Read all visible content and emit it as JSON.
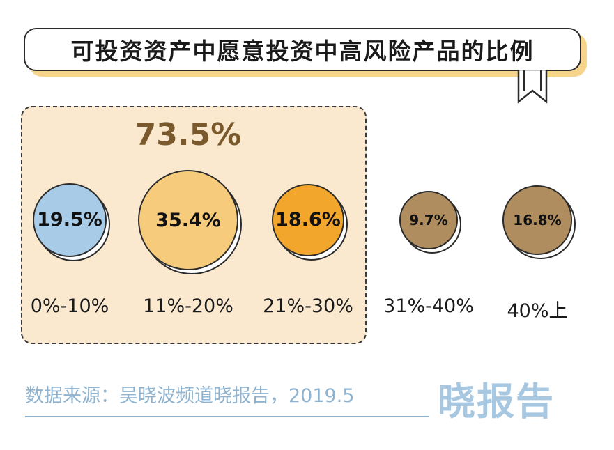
{
  "chart_data": {
    "type": "bubble",
    "title": "可投资资产中愿意投资中高风险产品的比例",
    "categories": [
      "0%-10%",
      "11%-20%",
      "21%-30%",
      "31%-40%",
      "40%上"
    ],
    "values": [
      19.5,
      35.4,
      18.6,
      9.7,
      16.8
    ],
    "value_labels": [
      "19.5%",
      "35.4%",
      "18.6%",
      "9.7%",
      "16.8%"
    ],
    "colors": [
      "#a8cbe8",
      "#f6cb7b",
      "#f2a62b",
      "#b08d5f",
      "#b08d5f"
    ],
    "highlight": {
      "label": "73.5%",
      "covers": [
        "0%-10%",
        "11%-20%",
        "21%-30%"
      ],
      "fill": "#fbe9cf"
    },
    "legend": "none",
    "grid": false
  },
  "source": "数据来源：吴晓波频道晓报告，2019.5",
  "logo": "晓报告"
}
